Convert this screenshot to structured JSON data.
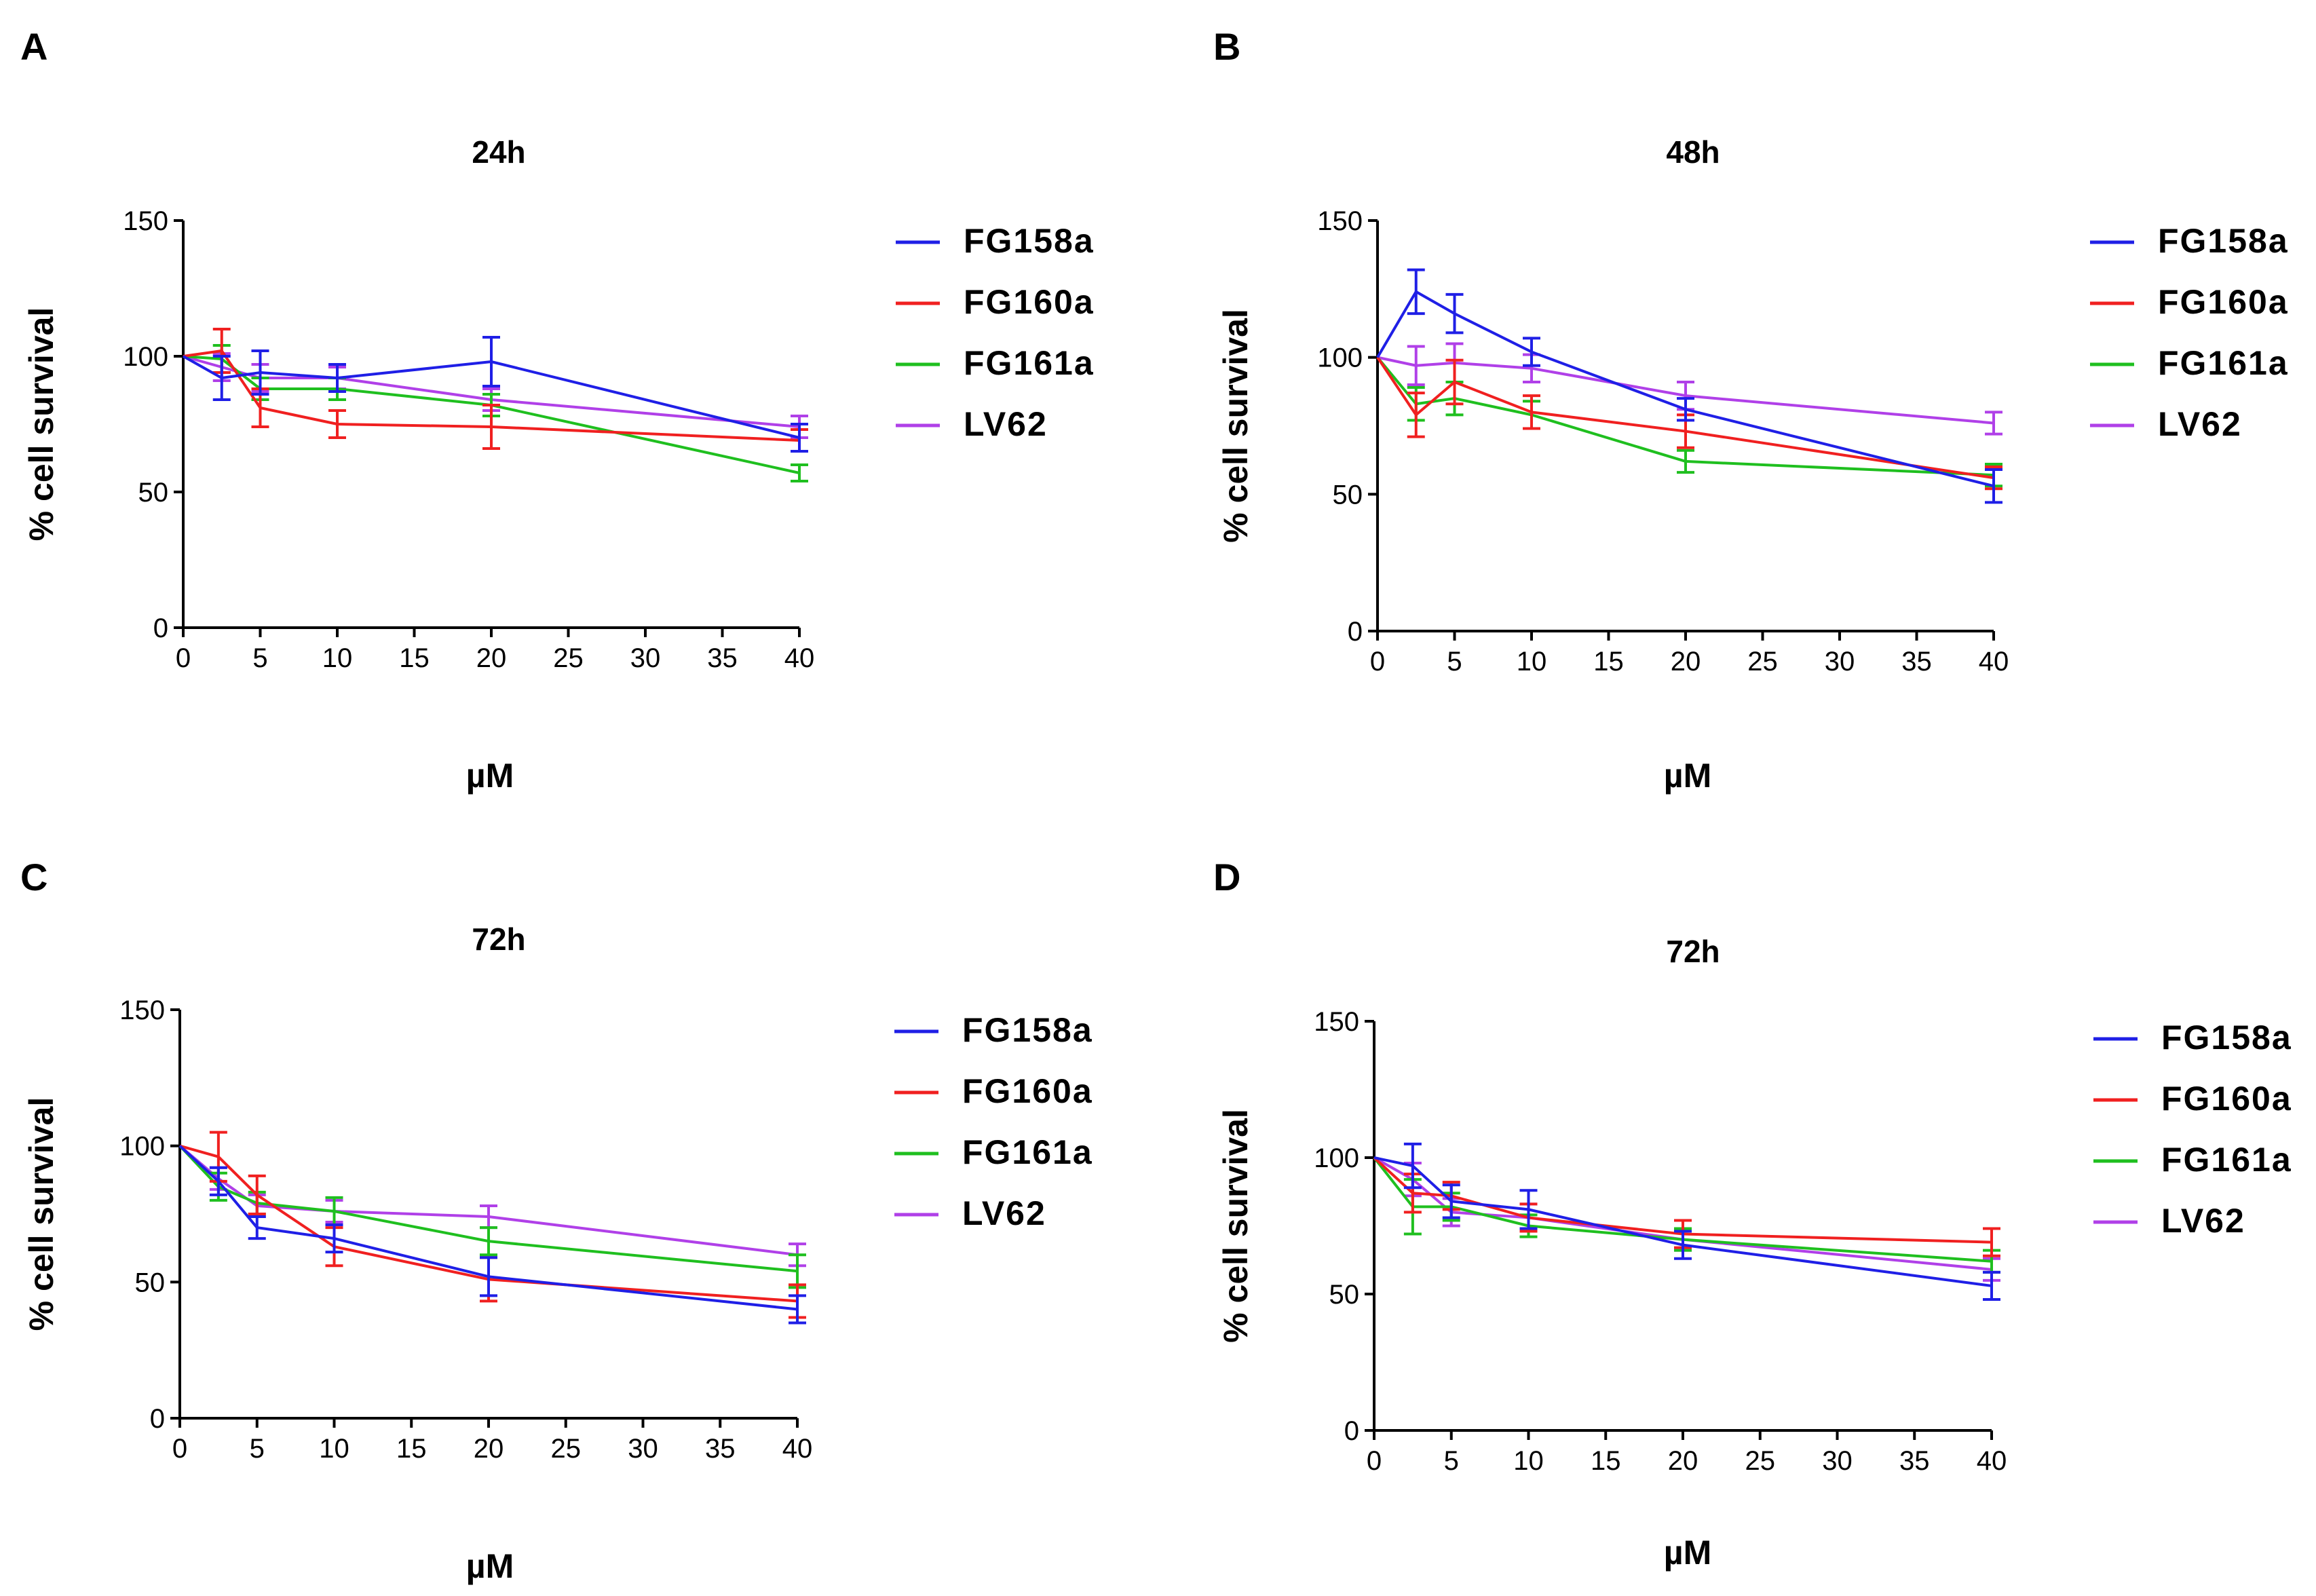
{
  "colors": {
    "FG158a": "#1f1fe6",
    "FG160a": "#f02020",
    "FG161a": "#1fbf1f",
    "LV62": "#b040e8",
    "axis": "#000000"
  },
  "chart_data": [
    {
      "panel": "A",
      "type": "line",
      "title": "24h",
      "xlabel": "µM",
      "ylabel": "% cell survival",
      "xlim": [
        0,
        40
      ],
      "ylim": [
        0,
        150
      ],
      "xticks": [
        0,
        5,
        10,
        15,
        20,
        25,
        30,
        35,
        40
      ],
      "yticks": [
        0,
        50,
        100,
        150
      ],
      "legend": "right",
      "series": [
        {
          "name": "FG158a",
          "x": [
            0,
            2.5,
            5,
            10,
            20,
            40
          ],
          "y": [
            100,
            92,
            94,
            92,
            98,
            70
          ],
          "err": [
            0,
            8,
            8,
            5,
            9,
            5
          ]
        },
        {
          "name": "FG160a",
          "x": [
            0,
            2.5,
            5,
            10,
            20,
            40
          ],
          "y": [
            100,
            102,
            81,
            75,
            74,
            69
          ],
          "err": [
            0,
            8,
            7,
            5,
            8,
            4
          ]
        },
        {
          "name": "FG161a",
          "x": [
            0,
            2.5,
            5,
            10,
            20,
            40
          ],
          "y": [
            100,
            99,
            88,
            88,
            82,
            57
          ],
          "err": [
            0,
            5,
            4,
            4,
            4,
            3
          ]
        },
        {
          "name": "LV62",
          "x": [
            0,
            2.5,
            5,
            10,
            20,
            40
          ],
          "y": [
            100,
            96,
            92,
            92,
            84,
            74
          ],
          "err": [
            0,
            5,
            5,
            4,
            4,
            4
          ]
        }
      ]
    },
    {
      "panel": "B",
      "type": "line",
      "title": "48h",
      "xlabel": "µM",
      "ylabel": "% cell survival",
      "xlim": [
        0,
        40
      ],
      "ylim": [
        0,
        150
      ],
      "xticks": [
        0,
        5,
        10,
        15,
        20,
        25,
        30,
        35,
        40
      ],
      "yticks": [
        0,
        50,
        100,
        150
      ],
      "legend": "right",
      "series": [
        {
          "name": "FG158a",
          "x": [
            0,
            2.5,
            5,
            10,
            20,
            40
          ],
          "y": [
            100,
            124,
            116,
            102,
            81,
            53
          ],
          "err": [
            0,
            8,
            7,
            5,
            4,
            6
          ]
        },
        {
          "name": "FG160a",
          "x": [
            0,
            2.5,
            5,
            10,
            20,
            40
          ],
          "y": [
            100,
            79,
            91,
            80,
            73,
            56
          ],
          "err": [
            0,
            8,
            8,
            6,
            6,
            4
          ]
        },
        {
          "name": "FG161a",
          "x": [
            0,
            2.5,
            5,
            10,
            20,
            40
          ],
          "y": [
            100,
            83,
            85,
            79,
            62,
            57
          ],
          "err": [
            0,
            6,
            6,
            5,
            4,
            4
          ]
        },
        {
          "name": "LV62",
          "x": [
            0,
            2.5,
            5,
            10,
            20,
            40
          ],
          "y": [
            100,
            97,
            98,
            96,
            86,
            76
          ],
          "err": [
            0,
            7,
            7,
            5,
            5,
            4
          ]
        }
      ]
    },
    {
      "panel": "C",
      "type": "line",
      "title": "72h",
      "xlabel": "µM",
      "ylabel": "% cell survival",
      "xlim": [
        0,
        40
      ],
      "ylim": [
        0,
        150
      ],
      "xticks": [
        0,
        5,
        10,
        15,
        20,
        25,
        30,
        35,
        40
      ],
      "yticks": [
        0,
        50,
        100,
        150
      ],
      "legend": "right",
      "series": [
        {
          "name": "FG158a",
          "x": [
            0,
            2.5,
            5,
            10,
            20,
            40
          ],
          "y": [
            100,
            87,
            70,
            66,
            52,
            40
          ],
          "err": [
            0,
            5,
            4,
            5,
            7,
            5
          ]
        },
        {
          "name": "FG160a",
          "x": [
            0,
            2.5,
            5,
            10,
            20,
            40
          ],
          "y": [
            100,
            96,
            82,
            63,
            51,
            43
          ],
          "err": [
            0,
            9,
            7,
            7,
            8,
            6
          ]
        },
        {
          "name": "FG161a",
          "x": [
            0,
            2.5,
            5,
            10,
            20,
            40
          ],
          "y": [
            100,
            85,
            79,
            76,
            65,
            54
          ],
          "err": [
            0,
            5,
            4,
            5,
            5,
            6
          ]
        },
        {
          "name": "LV62",
          "x": [
            0,
            2.5,
            5,
            10,
            20,
            40
          ],
          "y": [
            100,
            88,
            78,
            76,
            74,
            60
          ],
          "err": [
            0,
            4,
            4,
            4,
            4,
            4
          ]
        }
      ]
    },
    {
      "panel": "D",
      "type": "line",
      "title": "72h",
      "xlabel": "µM",
      "ylabel": "% cell survival",
      "xlim": [
        0,
        40
      ],
      "ylim": [
        0,
        150
      ],
      "xticks": [
        0,
        5,
        10,
        15,
        20,
        25,
        30,
        35,
        40
      ],
      "yticks": [
        0,
        50,
        100,
        150
      ],
      "legend": "right",
      "series": [
        {
          "name": "FG158a",
          "x": [
            0,
            2.5,
            5,
            10,
            20,
            40
          ],
          "y": [
            100,
            97,
            84,
            81,
            68,
            53
          ],
          "err": [
            0,
            8,
            6,
            7,
            5,
            5
          ]
        },
        {
          "name": "FG160a",
          "x": [
            0,
            2.5,
            5,
            10,
            20,
            40
          ],
          "y": [
            100,
            87,
            86,
            78,
            72,
            69
          ],
          "err": [
            0,
            7,
            5,
            5,
            5,
            5
          ]
        },
        {
          "name": "FG161a",
          "x": [
            0,
            2.5,
            5,
            10,
            20,
            40
          ],
          "y": [
            100,
            82,
            82,
            75,
            70,
            62
          ],
          "err": [
            0,
            10,
            5,
            4,
            4,
            4
          ]
        },
        {
          "name": "LV62",
          "x": [
            0,
            2.5,
            5,
            10,
            20,
            40
          ],
          "y": [
            100,
            92,
            80,
            78,
            70,
            59
          ],
          "err": [
            0,
            6,
            5,
            5,
            4,
            4
          ]
        }
      ]
    }
  ]
}
